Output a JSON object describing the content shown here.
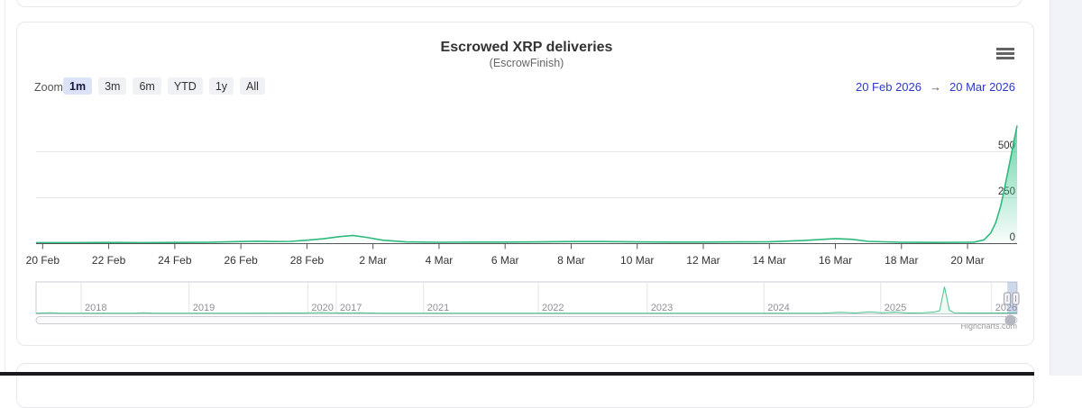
{
  "page": {
    "credit": "Highcharts.com",
    "background_panel_color": "#f1f3f9"
  },
  "chart": {
    "title": "Escrowed XRP deliveries",
    "subtitle": "(EscrowFinish)",
    "range_selector": {
      "zoom_label": "Zoom",
      "buttons": [
        "1m",
        "3m",
        "6m",
        "YTD",
        "1y",
        "All"
      ],
      "selected_button": "1m",
      "from_date": "20 Feb 2026",
      "arrow": "→",
      "to_date": "20 Mar 2026"
    },
    "colors": {
      "series_green": "#2eba7e",
      "area_fill_top": "rgba(52,196,137,0.75)",
      "area_fill_bottom": "rgba(52,196,137,0.03)",
      "navigator_line": "rgba(48,185,125,0.85)",
      "navigator_fill": "rgba(48,185,125,0.08)",
      "navigator_mask": "rgba(102,133,194,0.32)",
      "grid_line": "#e6e6e6",
      "axis_line": "#55555a",
      "axis_label": "#333333"
    }
  },
  "chart_data": {
    "type": "area",
    "title": "Escrowed XRP deliveries",
    "subtitle": "(EscrowFinish)",
    "xlabel": "",
    "ylabel": "",
    "x_range": [
      "20 Feb 2026",
      "20 Mar 2026"
    ],
    "x_tick_labels": [
      "20 Feb",
      "22 Feb",
      "24 Feb",
      "26 Feb",
      "28 Feb",
      "2 Mar",
      "4 Mar",
      "6 Mar",
      "8 Mar",
      "10 Mar",
      "12 Mar",
      "14 Mar",
      "16 Mar",
      "18 Mar",
      "20 Mar"
    ],
    "y_ticks": [
      0,
      250,
      500
    ],
    "ylim": [
      0,
      755
    ],
    "grid": true,
    "legend": false,
    "series": [
      {
        "name": "Escrowed XRP deliveries",
        "points_day_value": [
          [
            -0.2,
            3
          ],
          [
            0,
            3
          ],
          [
            1,
            3
          ],
          [
            2,
            4
          ],
          [
            3,
            3
          ],
          [
            4,
            4
          ],
          [
            5,
            5
          ],
          [
            6,
            9
          ],
          [
            6.5,
            11
          ],
          [
            7,
            9
          ],
          [
            7.5,
            10
          ],
          [
            8,
            16
          ],
          [
            8.5,
            24
          ],
          [
            9,
            36
          ],
          [
            9.4,
            42
          ],
          [
            9.8,
            32
          ],
          [
            10.3,
            16
          ],
          [
            11,
            7
          ],
          [
            12,
            5
          ],
          [
            13,
            6
          ],
          [
            14,
            6
          ],
          [
            15,
            7
          ],
          [
            16,
            9
          ],
          [
            17,
            9
          ],
          [
            18,
            7
          ],
          [
            19,
            6
          ],
          [
            20,
            6
          ],
          [
            21,
            7
          ],
          [
            22,
            8
          ],
          [
            23,
            14
          ],
          [
            24,
            25
          ],
          [
            24.5,
            21
          ],
          [
            25,
            10
          ],
          [
            26,
            5
          ],
          [
            27,
            4
          ],
          [
            28,
            5
          ],
          [
            28.2,
            6
          ],
          [
            28.5,
            18
          ],
          [
            28.7,
            55
          ],
          [
            28.85,
            110
          ],
          [
            29,
            200
          ],
          [
            29.1,
            280
          ],
          [
            29.2,
            370
          ],
          [
            29.3,
            460
          ],
          [
            29.4,
            550
          ],
          [
            29.5,
            640
          ]
        ]
      }
    ],
    "navigator": {
      "year_labels": [
        {
          "label": "2018",
          "pos": 0.046
        },
        {
          "label": "2019",
          "pos": 0.156
        },
        {
          "label": "2020",
          "pos": 0.277
        },
        {
          "label": "2017",
          "pos": 0.306
        },
        {
          "label": "2021",
          "pos": 0.395
        },
        {
          "label": "2022",
          "pos": 0.512
        },
        {
          "label": "2023",
          "pos": 0.623
        },
        {
          "label": "2024",
          "pos": 0.742
        },
        {
          "label": "2025",
          "pos": 0.861
        },
        {
          "label": "2026",
          "pos": 0.974
        }
      ],
      "points_frac_value": [
        [
          0,
          2
        ],
        [
          0.015,
          3.5
        ],
        [
          0.025,
          2
        ],
        [
          0.05,
          2
        ],
        [
          0.1,
          2.5
        ],
        [
          0.11,
          4
        ],
        [
          0.12,
          2
        ],
        [
          0.16,
          2
        ],
        [
          0.27,
          3
        ],
        [
          0.29,
          4.5
        ],
        [
          0.31,
          3
        ],
        [
          0.33,
          4
        ],
        [
          0.35,
          2
        ],
        [
          0.45,
          2
        ],
        [
          0.55,
          2
        ],
        [
          0.65,
          2
        ],
        [
          0.75,
          2
        ],
        [
          0.8,
          2.5
        ],
        [
          0.82,
          5
        ],
        [
          0.835,
          3
        ],
        [
          0.85,
          7
        ],
        [
          0.862,
          4
        ],
        [
          0.875,
          6
        ],
        [
          0.89,
          3
        ],
        [
          0.905,
          4
        ],
        [
          0.915,
          6
        ],
        [
          0.921,
          10
        ],
        [
          0.926,
          90
        ],
        [
          0.931,
          12
        ],
        [
          0.936,
          4
        ],
        [
          0.95,
          3
        ],
        [
          0.97,
          3
        ],
        [
          0.985,
          3
        ],
        [
          1,
          4
        ]
      ],
      "selected_range_frac": [
        0.99,
        1.0
      ],
      "value_scale_max": 100
    }
  }
}
